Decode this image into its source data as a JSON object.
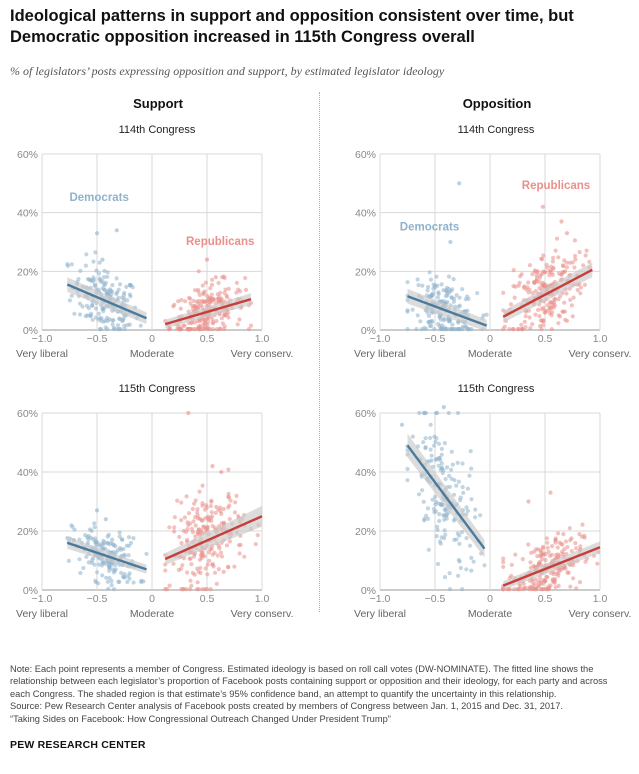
{
  "title": "Ideological patterns in support and opposition consistent over time, but Democratic opposition increased in 115th Congress overall",
  "subtitle": "% of legislators’ posts expressing opposition and support, by estimated legislator ideology",
  "columns": {
    "support": "Support",
    "opposition": "Opposition"
  },
  "colors": {
    "democrats": "#4a7b9d",
    "democrats_points": "#8fb3cc",
    "republicans": "#c63f3a",
    "republicans_points": "#e9908b",
    "band": "#c9c9c9",
    "grid": "#d8d8d8"
  },
  "notes": {
    "note": "Note: Each point represents a member of Congress. Estimated ideology is based on roll call votes (DW-NOMINATE). The fitted line shows the relationship between each legislator’s proportion of Facebook posts containing support or opposition and their ideology, for each party and across each Congress. The shaded region is that estimate’s 95% confidence band, an attempt to quantify the uncertainty in this relationship.",
    "source": "Source: Pew Research Center analysis of Facebook posts created by members of Congress between Jan. 1, 2015 and Dec. 31, 2017.",
    "report": "“Taking Sides on Facebook: How Congressional Outreach Changed Under President Trump”"
  },
  "brand": "PEW RESEARCH CENTER",
  "chart_data": [
    {
      "type": "scatter",
      "column": "Support",
      "panel_title": "114th Congress",
      "x_ticks": [
        "−1.0",
        "−0.5",
        "0",
        "0.5",
        "1.0"
      ],
      "x_tick_values": [
        -1,
        -0.5,
        0,
        0.5,
        1
      ],
      "x_anchor_labels": [
        "Very liberal",
        "Moderate",
        "Very conserv."
      ],
      "y_ticks": [
        "60%",
        "40%",
        "20%",
        "0%"
      ],
      "y_tick_values": [
        60,
        40,
        20,
        0
      ],
      "ylim": [
        0,
        60
      ],
      "xlim": [
        -1,
        1
      ],
      "grid": true,
      "party_labels": [
        {
          "name": "Democrats",
          "x": -0.48,
          "y": 44
        },
        {
          "name": "Republicans",
          "x": 0.62,
          "y": 29
        }
      ],
      "series": [
        {
          "name": "Democrats",
          "x_range": [
            -0.77,
            -0.05
          ],
          "fit_start": 15.5,
          "fit_end": 4,
          "band": [
            2.5,
            2
          ],
          "center_x": -0.42,
          "spread_x": 0.15,
          "mean_y": 10,
          "sd_y": 6,
          "n": 180,
          "outliers": [
            [
              -0.32,
              34
            ],
            [
              -0.5,
              33
            ],
            [
              -0.45,
              24
            ]
          ]
        },
        {
          "name": "Republicans",
          "x_range": [
            0.12,
            0.9
          ],
          "fit_start": 2,
          "fit_end": 10.5,
          "band": [
            1.5,
            2
          ],
          "center_x": 0.5,
          "spread_x": 0.17,
          "mean_y": 6,
          "sd_y": 4.5,
          "n": 230,
          "outliers": [
            [
              0.5,
              24
            ],
            [
              0.58,
              18
            ]
          ]
        }
      ]
    },
    {
      "type": "scatter",
      "column": "Opposition",
      "panel_title": "114th Congress",
      "x_ticks": [
        "−1.0",
        "−0.5",
        "0",
        "0.5",
        "1.0"
      ],
      "x_tick_values": [
        -1,
        -0.5,
        0,
        0.5,
        1
      ],
      "x_anchor_labels": [
        "Very liberal",
        "Moderate",
        "Very conserv."
      ],
      "y_ticks": [
        "60%",
        "40%",
        "20%",
        "0%"
      ],
      "y_tick_values": [
        60,
        40,
        20,
        0
      ],
      "ylim": [
        0,
        60
      ],
      "xlim": [
        -1,
        1
      ],
      "grid": true,
      "party_labels": [
        {
          "name": "Democrats",
          "x": -0.55,
          "y": 34
        },
        {
          "name": "Republicans",
          "x": 0.6,
          "y": 48
        }
      ],
      "series": [
        {
          "name": "Democrats",
          "x_range": [
            -0.75,
            -0.03
          ],
          "fit_start": 11.5,
          "fit_end": 1.5,
          "band": [
            2.5,
            2
          ],
          "center_x": -0.42,
          "spread_x": 0.15,
          "mean_y": 6,
          "sd_y": 5,
          "n": 180,
          "outliers": [
            [
              -0.28,
              50
            ],
            [
              -0.36,
              30
            ]
          ]
        },
        {
          "name": "Republicans",
          "x_range": [
            0.12,
            0.93
          ],
          "fit_start": 4.5,
          "fit_end": 20.5,
          "band": [
            2,
            2.5
          ],
          "center_x": 0.5,
          "spread_x": 0.17,
          "mean_y": 14,
          "sd_y": 7,
          "n": 230,
          "outliers": [
            [
              0.48,
              42
            ],
            [
              0.65,
              37
            ],
            [
              0.7,
              33
            ]
          ]
        }
      ]
    },
    {
      "type": "scatter",
      "column": "Support",
      "panel_title": "115th Congress",
      "x_ticks": [
        "−1.0",
        "−0.5",
        "0",
        "0.5",
        "1.0"
      ],
      "x_tick_values": [
        -1,
        -0.5,
        0,
        0.5,
        1
      ],
      "x_anchor_labels": [
        "Very liberal",
        "Moderate",
        "Very conserv."
      ],
      "y_ticks": [
        "60%",
        "40%",
        "20%",
        "0%"
      ],
      "y_tick_values": [
        60,
        40,
        20,
        0
      ],
      "ylim": [
        0,
        60
      ],
      "xlim": [
        -1,
        1
      ],
      "grid": true,
      "party_labels": [],
      "series": [
        {
          "name": "Democrats",
          "x_range": [
            -0.77,
            -0.05
          ],
          "fit_start": 16,
          "fit_end": 7,
          "band": [
            2,
            1.5
          ],
          "center_x": -0.42,
          "spread_x": 0.15,
          "mean_y": 11,
          "sd_y": 4.5,
          "n": 180,
          "outliers": [
            [
              -0.5,
              27
            ],
            [
              -0.42,
              24
            ]
          ]
        },
        {
          "name": "Republicans",
          "x_range": [
            0.12,
            1.0
          ],
          "fit_start": 10.5,
          "fit_end": 25,
          "band": [
            2,
            3.5
          ],
          "center_x": 0.5,
          "spread_x": 0.17,
          "mean_y": 17,
          "sd_y": 8,
          "n": 230,
          "outliers": [
            [
              0.33,
              60
            ],
            [
              0.55,
              42
            ],
            [
              0.63,
              40
            ]
          ]
        }
      ]
    },
    {
      "type": "scatter",
      "column": "Opposition",
      "panel_title": "115th Congress",
      "x_ticks": [
        "−1.0",
        "−0.5",
        "0",
        "0.5",
        "1.0"
      ],
      "x_tick_values": [
        -1,
        -0.5,
        0,
        0.5,
        1
      ],
      "x_anchor_labels": [
        "Very liberal",
        "Moderate",
        "Very conserv."
      ],
      "y_ticks": [
        "60%",
        "40%",
        "20%",
        "0%"
      ],
      "y_tick_values": [
        60,
        40,
        20,
        0
      ],
      "ylim": [
        0,
        60
      ],
      "xlim": [
        -1,
        1
      ],
      "grid": true,
      "party_labels": [],
      "series": [
        {
          "name": "Democrats",
          "x_range": [
            -0.75,
            -0.05
          ],
          "fit_start": 49,
          "fit_end": 14,
          "band": [
            4,
            3
          ],
          "center_x": -0.42,
          "spread_x": 0.15,
          "mean_y": 30,
          "sd_y": 12,
          "n": 180,
          "outliers": [
            [
              -0.42,
              62
            ],
            [
              -0.8,
              56
            ]
          ]
        },
        {
          "name": "Republicans",
          "x_range": [
            0.12,
            1.0
          ],
          "fit_start": 1.5,
          "fit_end": 14.5,
          "band": [
            1.5,
            2
          ],
          "center_x": 0.5,
          "spread_x": 0.17,
          "mean_y": 7,
          "sd_y": 5,
          "n": 230,
          "outliers": [
            [
              0.55,
              33
            ],
            [
              0.35,
              30
            ]
          ]
        }
      ]
    }
  ]
}
